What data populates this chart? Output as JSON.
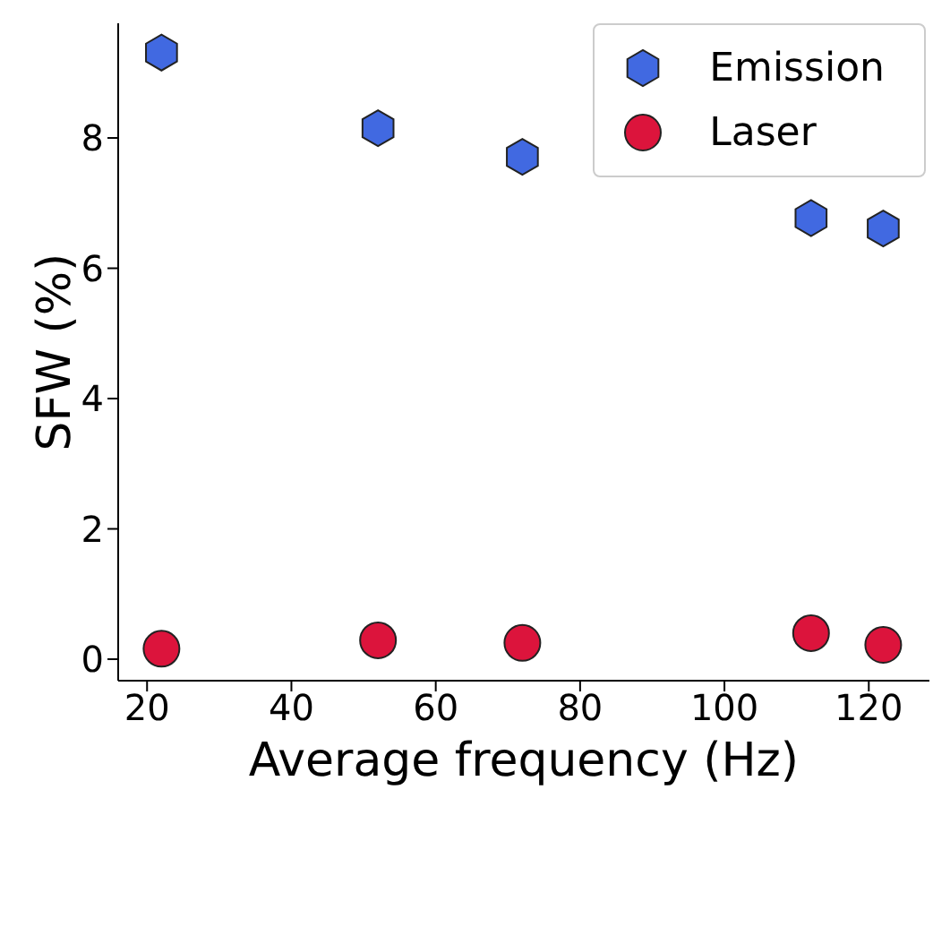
{
  "chart_data": {
    "type": "scatter",
    "xlabel": "Average frequency (Hz)",
    "ylabel": "SFW (%)",
    "x": [
      22,
      52,
      72,
      112,
      122
    ],
    "series": [
      {
        "name": "Emission",
        "color": "#4169e1",
        "values": [
          9.31,
          8.15,
          7.71,
          6.77,
          6.61
        ]
      },
      {
        "name": "Laser",
        "color": "#dc143c",
        "values": [
          0.16,
          0.29,
          0.25,
          0.4,
          0.22
        ]
      }
    ],
    "xlim": [
      16,
      128.4
    ],
    "xticks": [
      20,
      40,
      60,
      80,
      100,
      120
    ],
    "ylim": [
      -0.33,
      9.76
    ],
    "yticks": [
      0,
      2,
      4,
      6,
      8
    ],
    "grid": false,
    "legend": "top right"
  }
}
